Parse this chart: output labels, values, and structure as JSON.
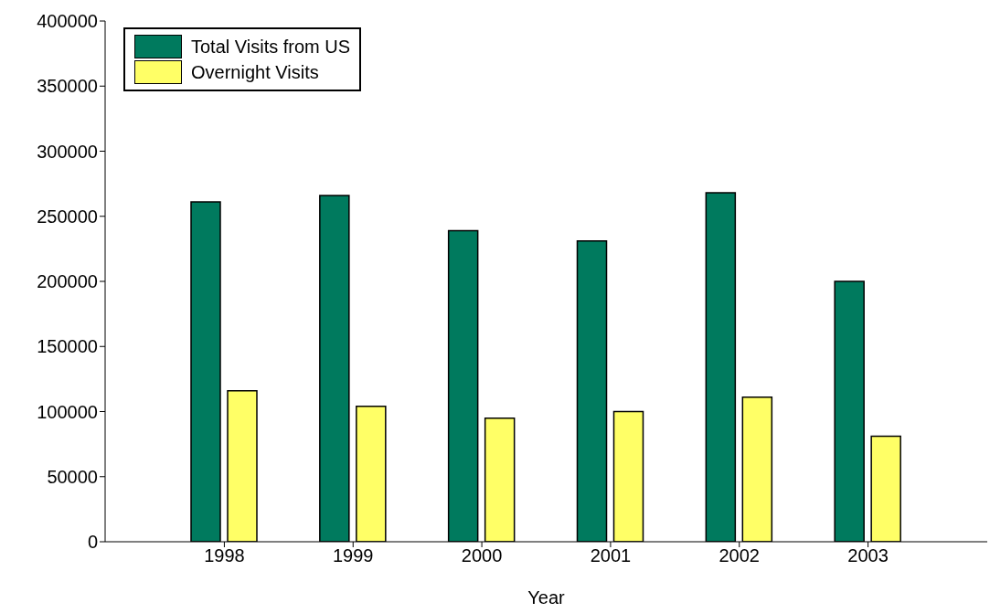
{
  "chart_data": {
    "type": "bar",
    "xlabel": "Year",
    "categories": [
      "1998",
      "1999",
      "2000",
      "2001",
      "2002",
      "2003"
    ],
    "series": [
      {
        "name": "Total Visits from US",
        "color": "#007a5e",
        "values": [
          261000,
          266000,
          239000,
          231000,
          268000,
          200000
        ]
      },
      {
        "name": "Overnight Visits",
        "color": "#ffff66",
        "values": [
          116000,
          104000,
          95000,
          100000,
          111000,
          81000
        ]
      }
    ],
    "ylim": [
      0,
      400000
    ],
    "yticks": [
      0,
      50000,
      100000,
      150000,
      200000,
      250000,
      300000,
      350000,
      400000
    ],
    "grid": false,
    "legend": "top left"
  }
}
